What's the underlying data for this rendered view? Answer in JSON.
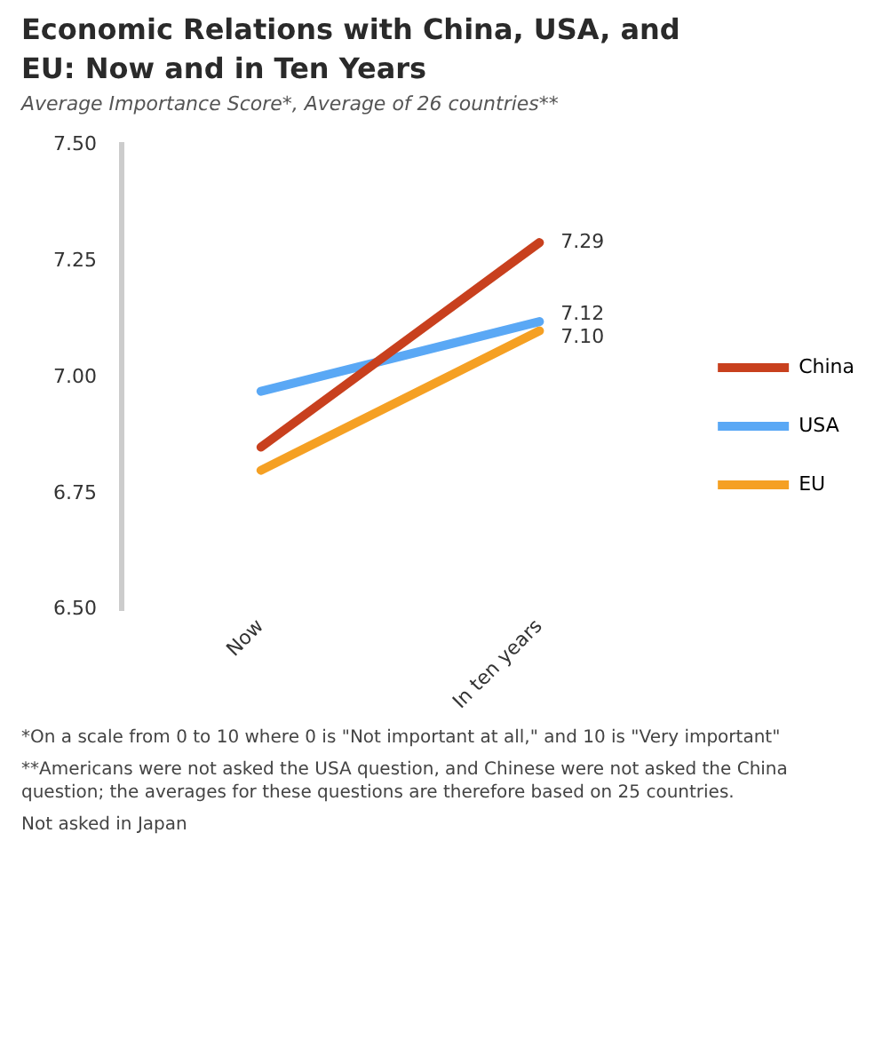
{
  "chart_data": {
    "type": "line",
    "title": "Economic Relations with China, USA, and EU: Now and in Ten Years",
    "subtitle": "Average Importance Score*, Average of 26 countries**",
    "categories": [
      "Now",
      "In ten years"
    ],
    "series": [
      {
        "name": "China",
        "color": "#c8401e",
        "values": [
          6.85,
          7.29
        ],
        "value_labels": [
          null,
          "7.29"
        ]
      },
      {
        "name": "USA",
        "color": "#5aa8f5",
        "values": [
          6.97,
          7.12
        ],
        "value_labels": [
          null,
          "7.12"
        ]
      },
      {
        "name": "EU",
        "color": "#f5a023",
        "values": [
          6.8,
          7.1
        ],
        "value_labels": [
          null,
          "7.10"
        ]
      }
    ],
    "ylim": [
      6.5,
      7.5
    ],
    "yticks": [
      {
        "value": 6.5,
        "label": "6.50"
      },
      {
        "value": 6.75,
        "label": "6.75"
      },
      {
        "value": 7,
        "label": "7.00"
      },
      {
        "value": 7.25,
        "label": "7.25"
      },
      {
        "value": 7.5,
        "label": "7.50"
      }
    ],
    "grid": false,
    "legend": "right",
    "marker": "none",
    "line_style": "solid",
    "annotations": [
      "*On a scale from 0 to 10 where 0 is \"Not important at all,\" and 10 is \"Very important\"",
      "**Americans were not asked the USA question, and Chinese were not asked the China question; the averages for these questions are therefore based on 25 countries.",
      "Not asked in Japan"
    ]
  }
}
